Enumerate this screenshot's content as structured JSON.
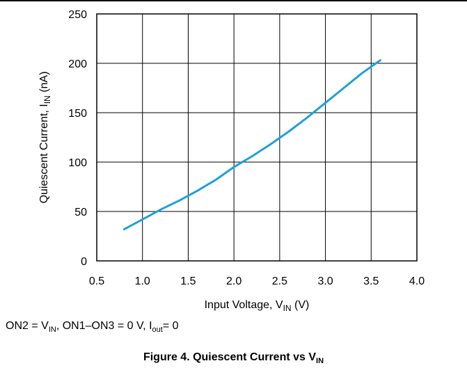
{
  "chart_data": {
    "type": "line",
    "x_ticks": [
      "0.5",
      "1.0",
      "1.5",
      "2.0",
      "2.5",
      "3.0",
      "3.5",
      "4.0"
    ],
    "y_ticks": [
      "0",
      "50",
      "100",
      "150",
      "200",
      "250"
    ],
    "xlim": [
      0.5,
      4.0
    ],
    "ylim": [
      0,
      250
    ],
    "grid": true,
    "xlabel": {
      "main": "Input  Voltage, V",
      "sub": "IN",
      "unit": " (V)"
    },
    "ylabel": {
      "main": "Quiescent Current, I",
      "sub": "IN",
      "unit": " (nA)"
    },
    "series": [
      {
        "color": "#1ea0dc",
        "x": [
          0.8,
          1.0,
          1.2,
          1.4,
          1.6,
          1.8,
          2.0,
          2.2,
          2.4,
          2.6,
          2.8,
          3.0,
          3.2,
          3.4,
          3.6
        ],
        "y": [
          32,
          42,
          52,
          61,
          71,
          82,
          95,
          106,
          118,
          131,
          145,
          160,
          175,
          190,
          203
        ]
      }
    ]
  },
  "conditions": {
    "p1": "ON2 = V",
    "s1": "IN",
    "p2": ", ON1–ON3 = 0 V, I",
    "s2": "out",
    "p3": "= 0"
  },
  "caption": {
    "main": "Figure 4. Quiescent Current vs V",
    "sub": "IN"
  }
}
